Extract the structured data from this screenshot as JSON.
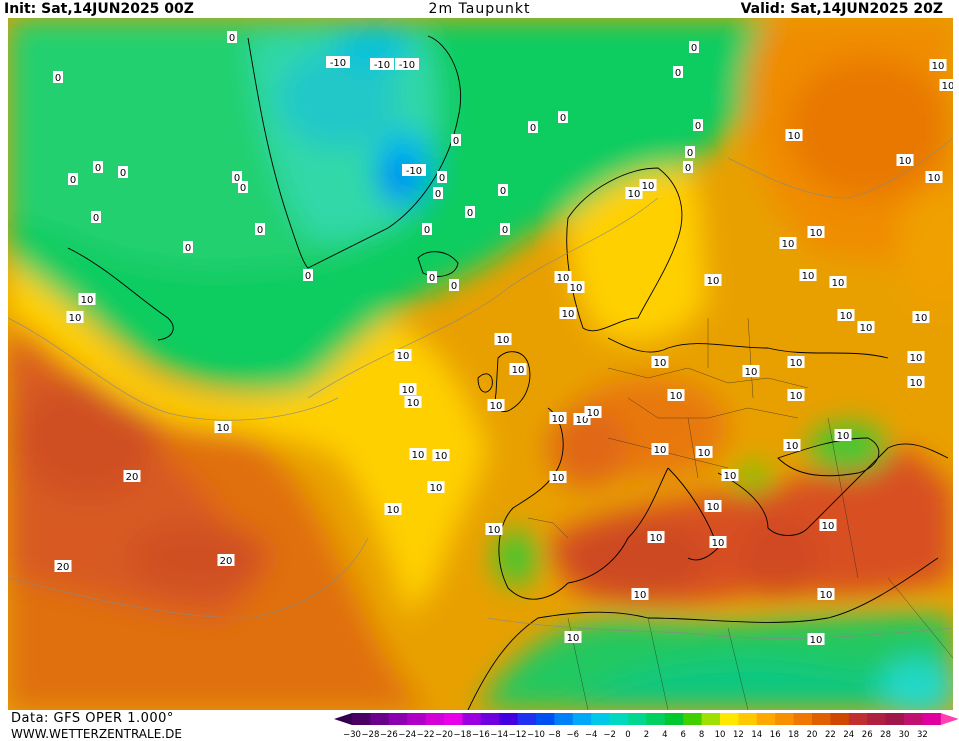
{
  "header": {
    "init": "Init: Sat,14JUN2025 00Z",
    "title": "2m Taupunkt",
    "valid": "Valid: Sat,14JUN2025 20Z"
  },
  "footer": {
    "source": "Data: GFS OPER 1.000°",
    "site": "WWW.WETTERZENTRALE.DE"
  },
  "colorbar": {
    "tick_labels": [
      "-30",
      "-28",
      "-26",
      "-24",
      "-22",
      "-20",
      "-18",
      "-16",
      "-14",
      "-12",
      "-10",
      "-8",
      "-6",
      "-4",
      "-2",
      "0",
      "2",
      "4",
      "6",
      "8",
      "10",
      "12",
      "14",
      "16",
      "18",
      "20",
      "22",
      "24",
      "26",
      "28",
      "30",
      "32"
    ],
    "colors": [
      "#4b0066",
      "#6a008c",
      "#8c00b0",
      "#b000c8",
      "#d400d8",
      "#e800e8",
      "#9c00e0",
      "#7000e0",
      "#4400e0",
      "#2030f0",
      "#0050f0",
      "#0080f8",
      "#00a8f8",
      "#00c8e8",
      "#00d8c0",
      "#00d890",
      "#00d060",
      "#00c830",
      "#40d000",
      "#a0e000",
      "#ffe800",
      "#ffc800",
      "#ffa800",
      "#f89000",
      "#f07800",
      "#e06000",
      "#d04800",
      "#c03030",
      "#b02040",
      "#a01848",
      "#c01070",
      "#e000a0"
    ],
    "underflow_color": "#330050",
    "overflow_color": "#ff40b0"
  },
  "map_labels": [
    "0",
    "0",
    "0",
    "0",
    "0",
    "0",
    "0",
    "0",
    "0",
    "0",
    "0",
    "0",
    "0",
    "0",
    "0",
    "0",
    "0",
    "0",
    "0",
    "0",
    "0",
    "0",
    "0",
    "0",
    "0",
    "0",
    "0",
    "-10",
    "-10",
    "-10",
    "-10",
    "10",
    "10",
    "10",
    "10",
    "10",
    "10",
    "10",
    "10",
    "10",
    "10",
    "10",
    "10",
    "10",
    "10",
    "10",
    "10",
    "10",
    "10",
    "10",
    "10",
    "10",
    "10",
    "10",
    "10",
    "10",
    "10",
    "10",
    "10",
    "10",
    "10",
    "10",
    "10",
    "10",
    "10",
    "10",
    "10",
    "10",
    "10",
    "10",
    "10",
    "10",
    "10",
    "10",
    "10",
    "10",
    "10",
    "10",
    "10",
    "10",
    "10",
    "10",
    "10",
    "10",
    "10",
    "10",
    "10",
    "20",
    "20",
    "20"
  ]
}
